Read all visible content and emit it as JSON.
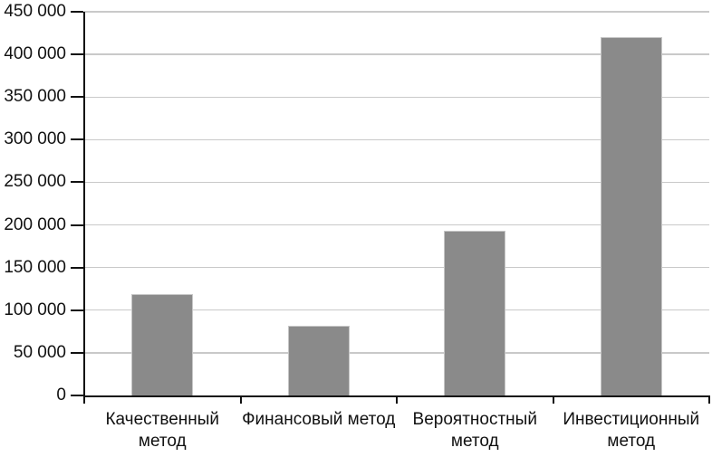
{
  "chart_data": {
    "type": "bar",
    "title": "",
    "categories": [
      "Качественный метод",
      "Финансовый метод",
      "Вероятностный метод",
      "Инвестиционный метод"
    ],
    "values": [
      119000,
      82000,
      193000,
      420000
    ],
    "xlabel": "",
    "ylabel": "",
    "ylim": [
      0,
      450000
    ],
    "ytick_step": 50000,
    "ytick_labels": [
      "0",
      "50 000",
      "100 000",
      "150 000",
      "200 000",
      "250 000",
      "300 000",
      "350 000",
      "400 000",
      "450 000"
    ],
    "grid": true,
    "legend_position": "none",
    "colors": {
      "bar": "#8a8a8a",
      "grid": "#c9c9c9",
      "axis": "#111111",
      "text": "#111111",
      "background": "#ffffff"
    }
  }
}
